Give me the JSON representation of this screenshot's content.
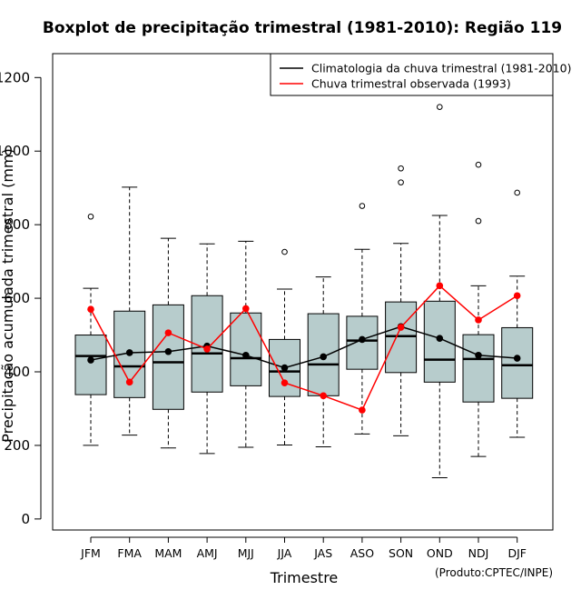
{
  "chart_data": {
    "type": "boxplot",
    "title": "Boxplot de precipitação trimestral (1981-2010): Região 119",
    "xlabel": "Trimestre",
    "ylabel": "Precipitação acumulada trimestral (mm)",
    "ylim": [
      -30,
      1265
    ],
    "yticks": [
      0,
      200,
      400,
      600,
      800,
      1000,
      1200
    ],
    "credit": "(Produto:CPTEC/INPE)",
    "legend": {
      "position": "top-right",
      "entries": [
        {
          "label": "Climatologia da chuva trimestral (1981-2010)",
          "color": "#000000"
        },
        {
          "label": "Chuva trimestral observada (1993)",
          "color": "#ff0000"
        }
      ]
    },
    "categories": [
      "JFM",
      "FMA",
      "MAM",
      "AMJ",
      "MJJ",
      "JJA",
      "JAS",
      "ASO",
      "SON",
      "OND",
      "NDJ",
      "DJF"
    ],
    "boxes": [
      {
        "min": 200,
        "q1": 338,
        "median": 443,
        "q3": 500,
        "max": 627,
        "outliers": [
          822
        ]
      },
      {
        "min": 228,
        "q1": 330,
        "median": 415,
        "q3": 565,
        "max": 902,
        "outliers": []
      },
      {
        "min": 193,
        "q1": 298,
        "median": 426,
        "q3": 582,
        "max": 763,
        "outliers": []
      },
      {
        "min": 178,
        "q1": 345,
        "median": 450,
        "q3": 607,
        "max": 748,
        "outliers": []
      },
      {
        "min": 195,
        "q1": 362,
        "median": 437,
        "q3": 560,
        "max": 755,
        "outliers": []
      },
      {
        "min": 201,
        "q1": 333,
        "median": 401,
        "q3": 488,
        "max": 625,
        "outliers": [
          726
        ]
      },
      {
        "min": 196,
        "q1": 335,
        "median": 420,
        "q3": 558,
        "max": 658,
        "outliers": []
      },
      {
        "min": 231,
        "q1": 407,
        "median": 485,
        "q3": 551,
        "max": 733,
        "outliers": [
          851
        ]
      },
      {
        "min": 226,
        "q1": 398,
        "median": 497,
        "q3": 590,
        "max": 749,
        "outliers": [
          915,
          953
        ]
      },
      {
        "min": 112,
        "q1": 372,
        "median": 433,
        "q3": 592,
        "max": 825,
        "outliers": [
          1120
        ]
      },
      {
        "min": 170,
        "q1": 318,
        "median": 435,
        "q3": 501,
        "max": 634,
        "outliers": [
          810,
          963
        ]
      },
      {
        "min": 222,
        "q1": 328,
        "median": 418,
        "q3": 520,
        "max": 660,
        "outliers": [
          887
        ]
      }
    ],
    "series": [
      {
        "name": "Climatologia da chuva trimestral (1981-2010)",
        "color": "#000000",
        "values": [
          432,
          452,
          455,
          470,
          445,
          411,
          441,
          488,
          523,
          491,
          445,
          437
        ]
      },
      {
        "name": "Chuva trimestral observada (1993)",
        "color": "#ff0000",
        "values": [
          570,
          372,
          506,
          462,
          572,
          370,
          335,
          296,
          521,
          634,
          541,
          607
        ]
      }
    ],
    "box_fill": "#b7cccc"
  }
}
